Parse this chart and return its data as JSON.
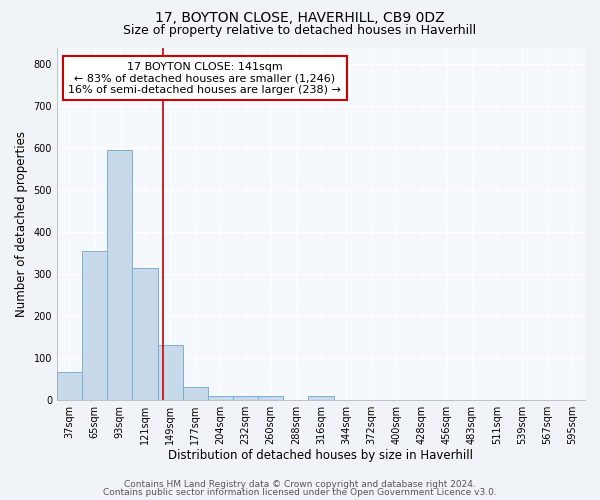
{
  "title": "17, BOYTON CLOSE, HAVERHILL, CB9 0DZ",
  "subtitle": "Size of property relative to detached houses in Haverhill",
  "xlabel": "Distribution of detached houses by size in Haverhill",
  "ylabel": "Number of detached properties",
  "bin_labels": [
    "37sqm",
    "65sqm",
    "93sqm",
    "121sqm",
    "149sqm",
    "177sqm",
    "204sqm",
    "232sqm",
    "260sqm",
    "288sqm",
    "316sqm",
    "344sqm",
    "372sqm",
    "400sqm",
    "428sqm",
    "456sqm",
    "483sqm",
    "511sqm",
    "539sqm",
    "567sqm",
    "595sqm"
  ],
  "bar_values": [
    65,
    355,
    595,
    315,
    130,
    30,
    10,
    10,
    10,
    0,
    10,
    0,
    0,
    0,
    0,
    0,
    0,
    0,
    0,
    0,
    0
  ],
  "bar_color": "#c8d9ea",
  "bar_edge_color": "#7bafd4",
  "vline_color": "#cc0000",
  "annotation_text": "17 BOYTON CLOSE: 141sqm\n← 83% of detached houses are smaller (1,246)\n16% of semi-detached houses are larger (238) →",
  "annotation_box_color": "#ffffff",
  "annotation_box_edge": "#cc0000",
  "ylim": [
    0,
    840
  ],
  "yticks": [
    0,
    100,
    200,
    300,
    400,
    500,
    600,
    700,
    800
  ],
  "footer_line1": "Contains HM Land Registry data © Crown copyright and database right 2024.",
  "footer_line2": "Contains public sector information licensed under the Open Government Licence v3.0.",
  "bg_color": "#f0f4f8",
  "plot_bg_color": "#f5f8fc",
  "title_fontsize": 10,
  "subtitle_fontsize": 9,
  "axis_label_fontsize": 8.5,
  "tick_fontsize": 7,
  "footer_fontsize": 6.5
}
